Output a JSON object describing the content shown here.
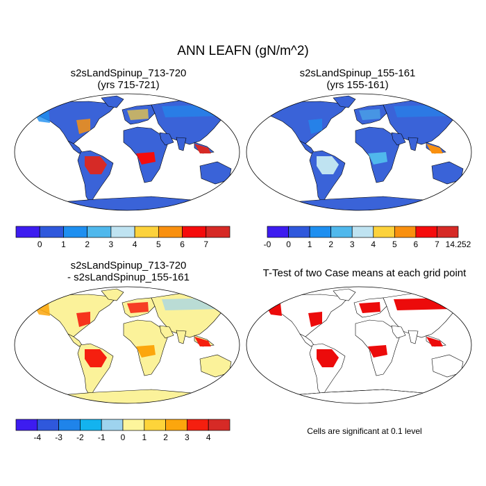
{
  "title": "ANN LEAFN (gN/m^2)",
  "panels": [
    {
      "name": "panel-case1",
      "title_line1": "s2sLandSpinup_713-720",
      "title_line2": "(yrs 715-721)"
    },
    {
      "name": "panel-case2",
      "title_line1": "s2sLandSpinup_155-161",
      "title_line2": "(yrs 155-161)"
    },
    {
      "name": "panel-diff",
      "title_line1": "s2sLandSpinup_713-720",
      "title_line2": "- s2sLandSpinup_155-161"
    },
    {
      "name": "panel-ttest",
      "title_line1": "T-Test of two Case means at each grid point",
      "title_line2": ""
    }
  ],
  "colorbars": {
    "case1": {
      "colors": [
        "#3d1cf0",
        "#2f58dc",
        "#1e8ff0",
        "#50b8ec",
        "#bfe3f1",
        "#fcd23c",
        "#f9900f",
        "#f50c0c",
        "#d62a26"
      ],
      "labels": [
        "0",
        "1",
        "2",
        "3",
        "4",
        "5",
        "6",
        "7"
      ]
    },
    "case2": {
      "colors": [
        "#3d1cf0",
        "#2f58dc",
        "#1e8ff0",
        "#50b8ec",
        "#bfe3f1",
        "#fcd23c",
        "#f9900f",
        "#f50c0c",
        "#d62a26"
      ],
      "labels": [
        "-0",
        "0",
        "1",
        "2",
        "3",
        "4",
        "5",
        "6",
        "7",
        "14.252"
      ]
    },
    "diff": {
      "colors": [
        "#3d1cf0",
        "#2f58dc",
        "#1f84ea",
        "#13b3ef",
        "#9ed3ee",
        "#fdf59c",
        "#fdd43a",
        "#fca60d",
        "#f51f0f",
        "#d62a26"
      ],
      "labels": [
        "-4",
        "-3",
        "-2",
        "-1",
        "0",
        "1",
        "2",
        "3",
        "4"
      ]
    }
  },
  "significance_note": "Cells are significant at 0.1 level",
  "map_colors": {
    "ocean": "#ffffff",
    "land_case1": "#3a63d8",
    "land_case2": "#3a63d8",
    "land_diff": "#fbf29a",
    "land_ttest": "#ffffff",
    "significant": "#ec0b0b",
    "coast": "#000000"
  }
}
